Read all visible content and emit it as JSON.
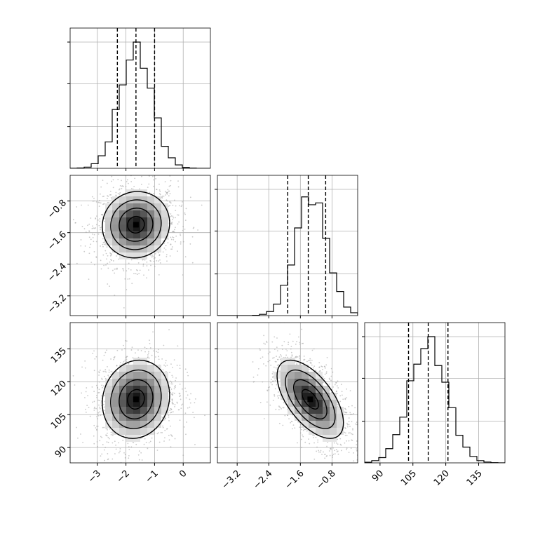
{
  "chart_data": {
    "type": "corner",
    "variables": [
      {
        "range": [
          -3.95,
          0.95
        ],
        "ticks": [
          -3,
          -2,
          -1,
          0
        ],
        "tick_labels": [
          "−3",
          "−2",
          "−1",
          "0"
        ],
        "quantiles": [
          -2.3,
          -1.65,
          -1.0
        ],
        "peak": -1.65,
        "sigma": 0.56,
        "hist_max": 1.0
      },
      {
        "range": [
          -3.7,
          -0.15
        ],
        "ticks": [
          -3.2,
          -2.4,
          -1.6,
          -0.8
        ],
        "tick_labels": [
          "−3.2",
          "−2.4",
          "−1.6",
          "−0.8"
        ],
        "quantiles": [
          -1.92,
          -1.4,
          -0.96
        ],
        "peak": -1.33,
        "sigma": 0.4,
        "hist_max": 1.0
      },
      {
        "range": [
          83,
          147
        ],
        "ticks": [
          90,
          105,
          120,
          135
        ],
        "tick_labels": [
          "90",
          "105",
          "120",
          "135"
        ],
        "quantiles": [
          103,
          112,
          121
        ],
        "peak": 112,
        "sigma": 8.5,
        "hist_max": 1.0
      }
    ],
    "histogram_yticks": [
      0.33,
      0.67,
      1.0
    ],
    "pairs": [
      {
        "x_var": 0,
        "y_var": 1,
        "center": [
          -1.65,
          -1.4
        ],
        "sigma": [
          0.56,
          0.4
        ],
        "rho": 0.05
      },
      {
        "x_var": 0,
        "y_var": 2,
        "center": [
          -1.65,
          112
        ],
        "sigma": [
          0.56,
          8.5
        ],
        "rho": 0.1
      },
      {
        "x_var": 1,
        "y_var": 2,
        "center": [
          -1.35,
          112
        ],
        "sigma": [
          0.4,
          8.5
        ],
        "rho": -0.6
      }
    ],
    "contour_levels": [
      0.5,
      1.0,
      1.5,
      2.0
    ],
    "colors": {
      "hist": "#000000",
      "points": "#9e9e9e",
      "grid": "#b0b0b0",
      "density": "#000000"
    }
  }
}
